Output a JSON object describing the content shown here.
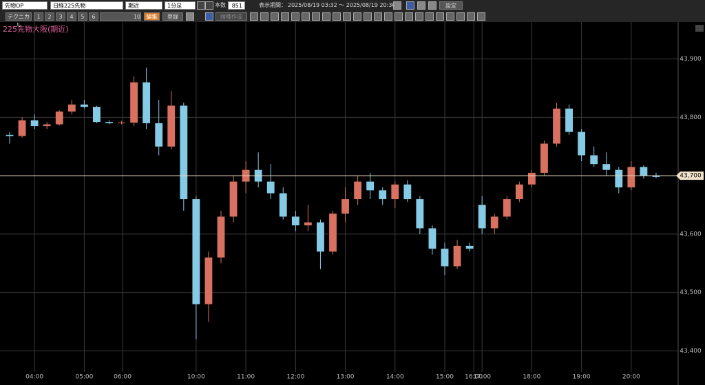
{
  "toolbar": {
    "market": "先物OP",
    "symbol": "日経225先物",
    "contract": "期近",
    "interval": "1分足",
    "count_label": "本数",
    "count": "851",
    "period_label": "表示期間：",
    "period": "2025/08/19 03:32 ～ 2025/08/19 20:36",
    "settings": "設定",
    "technical": "テクニカル",
    "slots": [
      "1",
      "2",
      "3",
      "4",
      "5",
      "6",
      "10"
    ],
    "edit": "編集",
    "register": "登録",
    "draw_tool": "線種作成"
  },
  "chart_data": {
    "type": "candlestick",
    "title": "225先物大阪(期近)",
    "up_color": "#d8715f",
    "down_color": "#86cbe6",
    "x": [
      "03:30",
      "03:45",
      "04:00",
      "04:15",
      "04:30",
      "04:45",
      "05:00",
      "05:15",
      "05:30",
      "05:45",
      "08:45",
      "09:00",
      "09:15",
      "09:30",
      "09:45",
      "10:00",
      "10:15",
      "10:30",
      "10:45",
      "11:00",
      "11:15",
      "11:30",
      "11:45",
      "12:00",
      "12:15",
      "12:30",
      "12:45",
      "13:00",
      "13:15",
      "13:30",
      "13:45",
      "14:00",
      "14:15",
      "14:30",
      "14:45",
      "15:00",
      "15:15",
      "15:30",
      "17:00",
      "17:15",
      "17:30",
      "17:45",
      "18:00",
      "18:15",
      "18:30",
      "18:45",
      "19:00",
      "19:15",
      "19:30",
      "19:45",
      "20:00",
      "20:15",
      "20:30"
    ],
    "open": [
      43770,
      43768,
      43795,
      43785,
      43788,
      43810,
      43822,
      43818,
      43792,
      43790,
      43791,
      43860,
      43790,
      43750,
      43820,
      43660,
      43480,
      43560,
      43630,
      43690,
      43710,
      43690,
      43670,
      43630,
      43615,
      43620,
      43570,
      43635,
      43660,
      43690,
      43675,
      43660,
      43685,
      43660,
      43610,
      43575,
      43545,
      43580,
      43650,
      43610,
      43630,
      43660,
      43685,
      43705,
      43755,
      43815,
      43775,
      43735,
      43720,
      43710,
      43680,
      43715,
      43700
    ],
    "high": [
      43775,
      43800,
      43805,
      43792,
      43812,
      43830,
      43830,
      43820,
      43795,
      43794,
      43870,
      43885,
      43830,
      43845,
      43825,
      43665,
      43570,
      43640,
      43700,
      43725,
      43740,
      43720,
      43680,
      43640,
      43650,
      43625,
      43640,
      43680,
      43700,
      43705,
      43680,
      43690,
      43692,
      43665,
      43615,
      43585,
      43590,
      43585,
      43665,
      43635,
      43665,
      43690,
      43710,
      43760,
      43825,
      43822,
      43780,
      43750,
      43740,
      43715,
      43725,
      43718,
      43705
    ],
    "low": [
      43755,
      43765,
      43780,
      43780,
      43786,
      43805,
      43815,
      43790,
      43788,
      43788,
      43785,
      43780,
      43735,
      43745,
      43640,
      43420,
      43450,
      43550,
      43620,
      43670,
      43680,
      43660,
      43625,
      43605,
      43605,
      43540,
      43565,
      43620,
      43650,
      43660,
      43650,
      43645,
      43655,
      43600,
      43565,
      43530,
      43540,
      43570,
      43600,
      43600,
      43625,
      43655,
      43680,
      43700,
      43750,
      43770,
      43725,
      43715,
      43700,
      43670,
      43675,
      43695,
      43696
    ],
    "close": [
      43768,
      43795,
      43785,
      43788,
      43810,
      43822,
      43818,
      43792,
      43790,
      43791,
      43860,
      43790,
      43750,
      43820,
      43660,
      43480,
      43560,
      43630,
      43690,
      43710,
      43690,
      43670,
      43630,
      43615,
      43620,
      43570,
      43635,
      43660,
      43690,
      43675,
      43660,
      43685,
      43660,
      43610,
      43575,
      43545,
      43580,
      43575,
      43610,
      43630,
      43660,
      43685,
      43705,
      43755,
      43815,
      43775,
      43735,
      43720,
      43710,
      43680,
      43715,
      43700,
      43698
    ],
    "xticks": [
      "04:00",
      "05:00",
      "06:00",
      "10:00",
      "11:00",
      "12:00",
      "13:00",
      "14:00",
      "15:00",
      "16:00",
      "17:00",
      "18:00",
      "19:00",
      "20:00"
    ],
    "ylim": [
      43364,
      43942
    ],
    "yticks": [
      {
        "value": 43400,
        "label": "43,400"
      },
      {
        "value": 43500,
        "label": "43,500"
      },
      {
        "value": 43600,
        "label": "43,600"
      },
      {
        "value": 43700,
        "label": "43,700"
      },
      {
        "value": 43800,
        "label": "43,800"
      },
      {
        "value": 43900,
        "label": "43,900"
      }
    ],
    "current_price": {
      "value": 43700,
      "label": "43,700"
    },
    "grid": true
  }
}
